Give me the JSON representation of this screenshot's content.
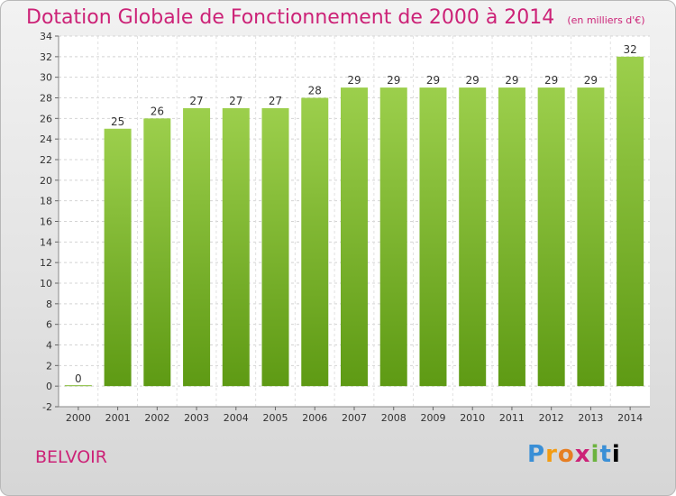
{
  "title": "Dotation Globale de Fonctionnement de 2000 à 2014",
  "unit_note": "(en milliers d'€)",
  "commune": "BELVOIR",
  "logo_text": "Proxiti",
  "colors": {
    "bar_top": "#9ccf4c",
    "bar_bottom": "#5e9a14",
    "title": "#cc2277"
  },
  "chart_data": {
    "type": "bar",
    "categories": [
      "2000",
      "2001",
      "2002",
      "2003",
      "2004",
      "2005",
      "2006",
      "2007",
      "2008",
      "2009",
      "2010",
      "2011",
      "2012",
      "2013",
      "2014"
    ],
    "values": [
      0,
      25,
      26,
      27,
      27,
      27,
      28,
      29,
      29,
      29,
      29,
      29,
      29,
      29,
      32
    ],
    "ylim": [
      -2,
      34
    ],
    "yticks": [
      -2,
      0,
      2,
      4,
      6,
      8,
      10,
      12,
      14,
      16,
      18,
      20,
      22,
      24,
      26,
      28,
      30,
      32,
      34
    ],
    "grid": true,
    "xlabel": "",
    "ylabel": ""
  }
}
